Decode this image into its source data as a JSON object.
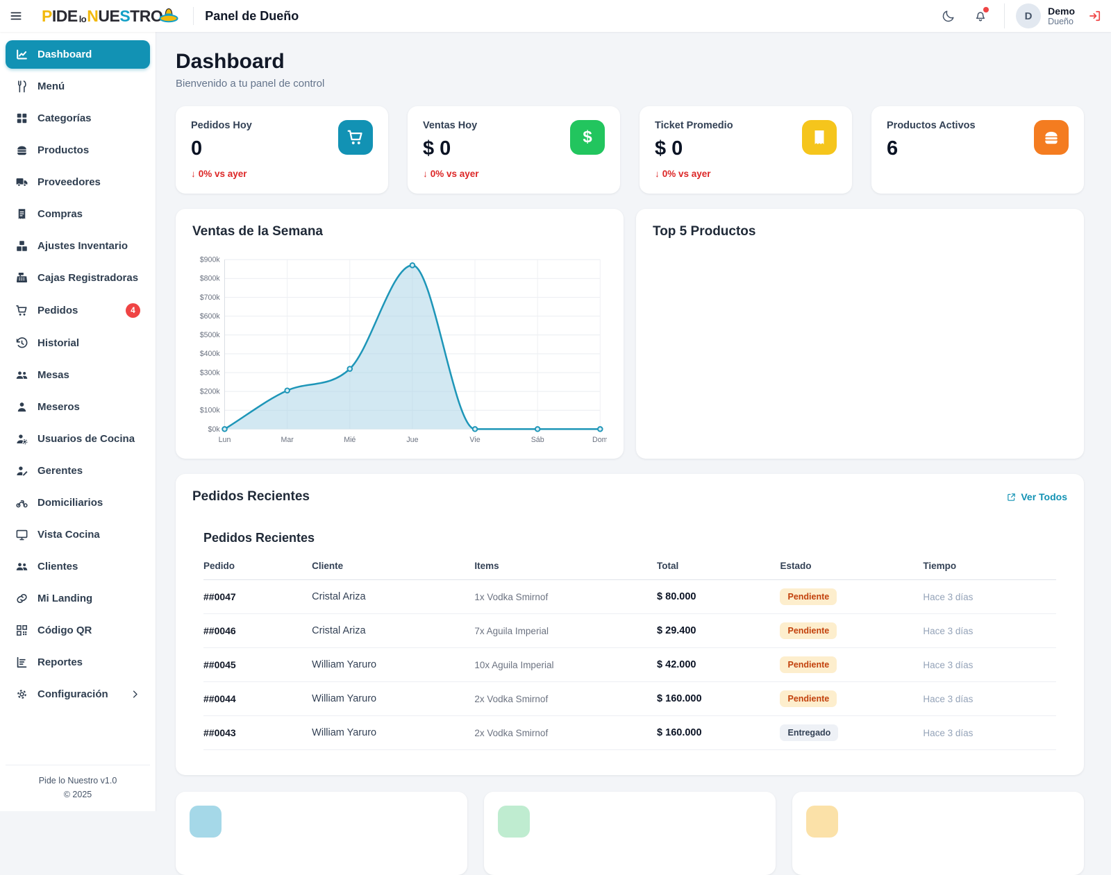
{
  "header": {
    "title": "Panel de Dueño",
    "logo_parts": [
      {
        "t": "P",
        "c": "#f2b90d",
        "small": false
      },
      {
        "t": "IDE",
        "c": "#2a2a32",
        "small": false
      },
      {
        "t": "lo",
        "c": "#2a2a32",
        "small": true
      },
      {
        "t": "N",
        "c": "#f2b90d",
        "small": false
      },
      {
        "t": "UE",
        "c": "#2a2a32",
        "small": false
      },
      {
        "t": "S",
        "c": "#14a0c6",
        "small": false
      },
      {
        "t": "TR",
        "c": "#2a2a32",
        "small": false
      },
      {
        "t": "O",
        "c": "#2a2a32",
        "small": false
      }
    ],
    "user": {
      "initial": "D",
      "name": "Demo",
      "role": "Dueño"
    }
  },
  "sidebar": {
    "items": [
      {
        "label": "Dashboard",
        "icon": "chart-line",
        "active": true
      },
      {
        "label": "Menú",
        "icon": "utensils"
      },
      {
        "label": "Categorías",
        "icon": "grid"
      },
      {
        "label": "Productos",
        "icon": "burger"
      },
      {
        "label": "Proveedores",
        "icon": "truck"
      },
      {
        "label": "Compras",
        "icon": "receipt"
      },
      {
        "label": "Ajustes Inventario",
        "icon": "boxes"
      },
      {
        "label": "Cajas Registradoras",
        "icon": "cash-register"
      },
      {
        "label": "Pedidos",
        "icon": "cart",
        "badge": "4"
      },
      {
        "label": "Historial",
        "icon": "history"
      },
      {
        "label": "Mesas",
        "icon": "users"
      },
      {
        "label": "Meseros",
        "icon": "user"
      },
      {
        "label": "Usuarios de Cocina",
        "icon": "user-gear"
      },
      {
        "label": "Gerentes",
        "icon": "user-pen"
      },
      {
        "label": "Domiciliarios",
        "icon": "motorcycle"
      },
      {
        "label": "Vista Cocina",
        "icon": "monitor"
      },
      {
        "label": "Clientes",
        "icon": "users"
      },
      {
        "label": "Mi Landing",
        "icon": "link"
      },
      {
        "label": "Código QR",
        "icon": "qrcode"
      },
      {
        "label": "Reportes",
        "icon": "chart-bar"
      },
      {
        "label": "Configuración",
        "icon": "gear",
        "chevron": true
      }
    ],
    "footer": {
      "version": "Pide lo Nuestro v1.0",
      "copyright": "© 2025"
    }
  },
  "page": {
    "title": "Dashboard",
    "subtitle": "Bienvenido a tu panel de control"
  },
  "stats": [
    {
      "label": "Pedidos Hoy",
      "value": "0",
      "change": "0% vs ayer",
      "icon": "cart",
      "color": "#1292b4"
    },
    {
      "label": "Ventas Hoy",
      "value": "$ 0",
      "change": "0% vs ayer",
      "icon": "dollar",
      "color": "#22c55e"
    },
    {
      "label": "Ticket Promedio",
      "value": "$ 0",
      "change": "0% vs ayer",
      "icon": "receipt",
      "color": "#f5c51c"
    },
    {
      "label": "Productos Activos",
      "value": "6",
      "change": null,
      "icon": "burger",
      "color": "#f47c20"
    }
  ],
  "chart_data": {
    "type": "area",
    "title": "Ventas de la Semana",
    "categories": [
      "Lun",
      "Mar",
      "Mié",
      "Jue",
      "Vie",
      "Sáb",
      "Dom"
    ],
    "values": [
      0,
      205000,
      320000,
      870000,
      0,
      0,
      0
    ],
    "y_ticks": [
      "$0k",
      "$100k",
      "$200k",
      "$300k",
      "$400k",
      "$500k",
      "$600k",
      "$700k",
      "$800k",
      "$900k"
    ],
    "ylim": [
      0,
      900000
    ],
    "grid": true,
    "legend": "none",
    "line_color": "#1e96b8",
    "fill_color": "rgba(165,210,230,0.5)"
  },
  "top_products": {
    "title": "Top 5 Productos"
  },
  "recent_orders": {
    "title": "Pedidos Recientes",
    "link_label": "Ver Todos",
    "inner_title": "Pedidos Recientes",
    "columns": [
      "Pedido",
      "Cliente",
      "Items",
      "Total",
      "Estado",
      "Tiempo"
    ],
    "rows": [
      {
        "pedido": "##0047",
        "cliente": "Cristal Ariza",
        "items": "1x Vodka Smirnof",
        "total": "$ 80.000",
        "estado": "Pendiente",
        "tiempo": "Hace 3 días"
      },
      {
        "pedido": "##0046",
        "cliente": "Cristal Ariza",
        "items": "7x Aguila Imperial",
        "total": "$ 29.400",
        "estado": "Pendiente",
        "tiempo": "Hace 3 días"
      },
      {
        "pedido": "##0045",
        "cliente": "William Yaruro",
        "items": "10x Aguila Imperial",
        "total": "$ 42.000",
        "estado": "Pendiente",
        "tiempo": "Hace 3 días"
      },
      {
        "pedido": "##0044",
        "cliente": "William Yaruro",
        "items": "2x Vodka Smirnof",
        "total": "$ 160.000",
        "estado": "Pendiente",
        "tiempo": "Hace 3 días"
      },
      {
        "pedido": "##0043",
        "cliente": "William Yaruro",
        "items": "2x Vodka Smirnof",
        "total": "$ 160.000",
        "estado": "Entregado",
        "tiempo": "Hace 3 días"
      }
    ]
  },
  "bottom_cards": [
    {
      "icon_color": "#a5d8e8"
    },
    {
      "icon_color": "#bfecd0"
    },
    {
      "icon_color": "#fbe1a8"
    }
  ],
  "colors": {
    "brand": "#1292b4",
    "danger": "#ef4444",
    "success": "#22c55e",
    "warning": "#f5c51c",
    "orange": "#f47c20"
  }
}
